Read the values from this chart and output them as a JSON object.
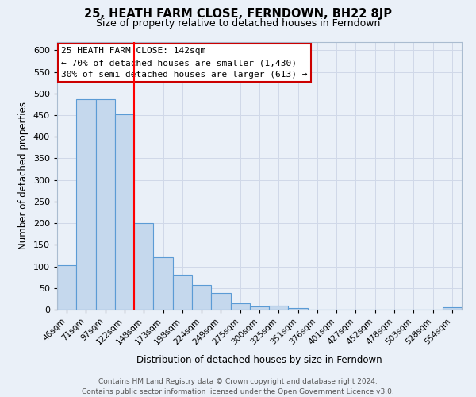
{
  "title": "25, HEATH FARM CLOSE, FERNDOWN, BH22 8JP",
  "subtitle": "Size of property relative to detached houses in Ferndown",
  "xlabel": "Distribution of detached houses by size in Ferndown",
  "ylabel": "Number of detached properties",
  "footer_line1": "Contains HM Land Registry data © Crown copyright and database right 2024.",
  "footer_line2": "Contains public sector information licensed under the Open Government Licence v3.0.",
  "bar_labels": [
    "46sqm",
    "71sqm",
    "97sqm",
    "122sqm",
    "148sqm",
    "173sqm",
    "198sqm",
    "224sqm",
    "249sqm",
    "275sqm",
    "300sqm",
    "325sqm",
    "351sqm",
    "376sqm",
    "401sqm",
    "427sqm",
    "452sqm",
    "478sqm",
    "503sqm",
    "528sqm",
    "554sqm"
  ],
  "bar_values": [
    103,
    487,
    487,
    452,
    200,
    122,
    81,
    57,
    39,
    15,
    8,
    10,
    4,
    0,
    0,
    0,
    0,
    0,
    0,
    0,
    5
  ],
  "bar_color": "#c5d8ed",
  "bar_edge_color": "#5b9bd5",
  "grid_color": "#d0d8e8",
  "background_color": "#eaf0f8",
  "red_line_index": 4,
  "annotation_text_line1": "25 HEATH FARM CLOSE: 142sqm",
  "annotation_text_line2": "← 70% of detached houses are smaller (1,430)",
  "annotation_text_line3": "30% of semi-detached houses are larger (613) →",
  "annotation_box_facecolor": "#ffffff",
  "annotation_box_edgecolor": "#cc0000",
  "ylim": [
    0,
    620
  ],
  "yticks": [
    0,
    50,
    100,
    150,
    200,
    250,
    300,
    350,
    400,
    450,
    500,
    550,
    600
  ]
}
